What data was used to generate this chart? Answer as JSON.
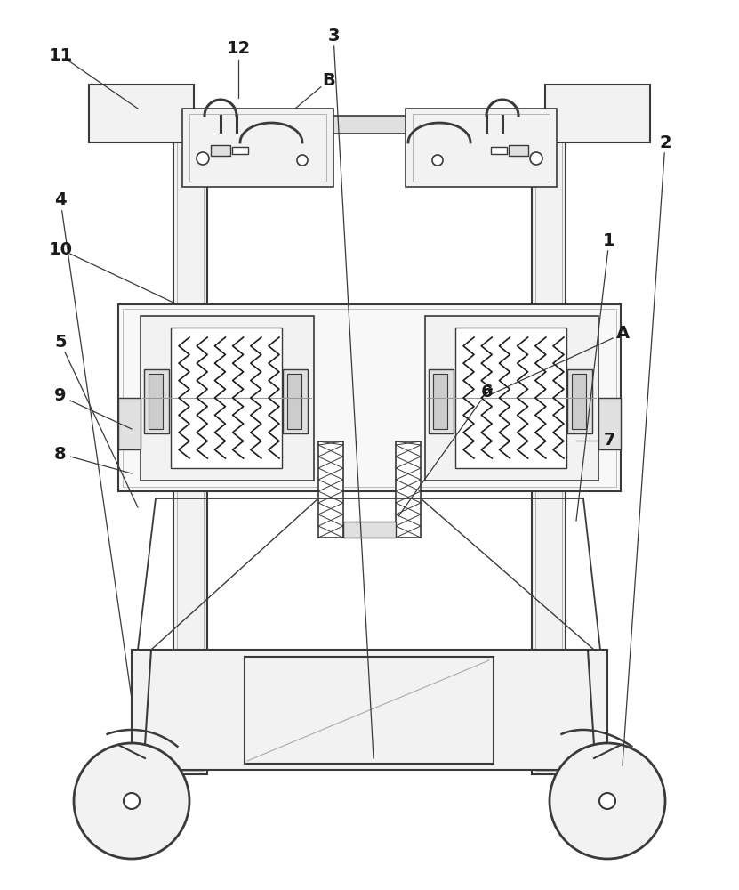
{
  "bg_color": "#ffffff",
  "lc": "#3a3a3a",
  "fc_light": "#f2f2f2",
  "fc_mid": "#e0e0e0",
  "fc_dark": "#cccccc",
  "annotations": [
    [
      "11",
      68,
      938,
      155,
      878
    ],
    [
      "12",
      268,
      945,
      268,
      890
    ],
    [
      "B",
      370,
      910,
      332,
      878
    ],
    [
      "10",
      68,
      720,
      195,
      660
    ],
    [
      "9",
      68,
      555,
      148,
      518
    ],
    [
      "8",
      68,
      490,
      148,
      468
    ],
    [
      "5",
      68,
      615,
      155,
      430
    ],
    [
      "6",
      548,
      560,
      448,
      420
    ],
    [
      "7",
      685,
      505,
      648,
      505
    ],
    [
      "A",
      700,
      625,
      548,
      555
    ],
    [
      "4",
      68,
      775,
      148,
      215
    ],
    [
      "1",
      685,
      730,
      648,
      415
    ],
    [
      "2",
      748,
      840,
      700,
      140
    ],
    [
      "3",
      375,
      960,
      420,
      148
    ]
  ]
}
